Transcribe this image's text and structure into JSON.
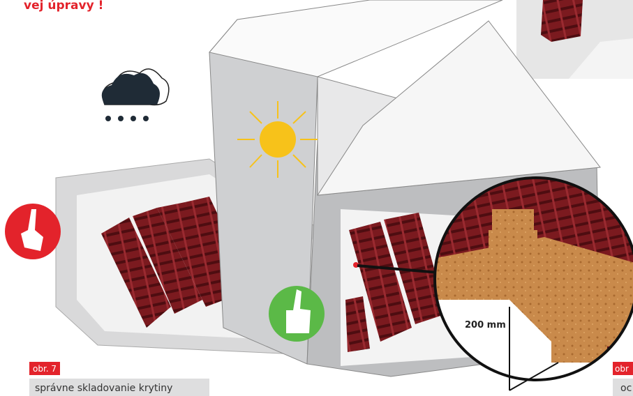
{
  "heading": "vej úpravy !",
  "figures": [
    {
      "label": "obr. 7",
      "caption": "správne skladovanie krytiny"
    },
    {
      "label": "obr",
      "caption": "oc"
    }
  ],
  "dimension": "200 mm"
}
